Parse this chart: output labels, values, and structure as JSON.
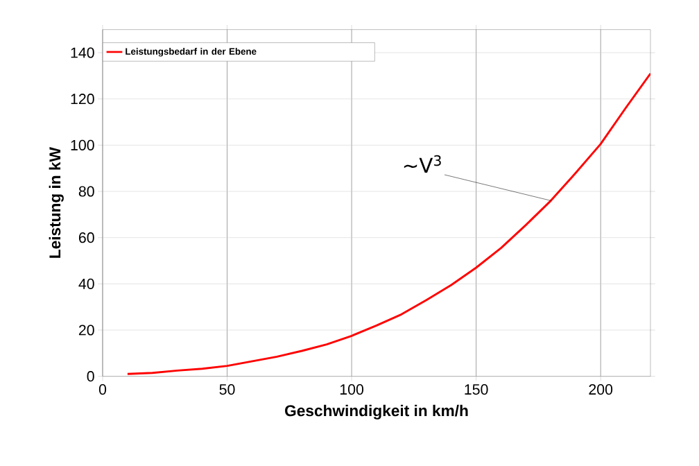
{
  "chart_data": {
    "type": "line",
    "xlabel": "Geschwindigkeit in km/h",
    "ylabel": "Leistung in kW",
    "x": [
      10,
      20,
      30,
      40,
      50,
      60,
      70,
      80,
      90,
      100,
      110,
      120,
      130,
      140,
      150,
      160,
      170,
      180,
      190,
      200,
      210,
      220
    ],
    "series": [
      {
        "name": "Leistungsbedarf in der Ebene",
        "color": "#ff0000",
        "values": [
          1,
          1.5,
          2.5,
          3.3,
          4.5,
          6.5,
          8.5,
          11,
          13.8,
          17.5,
          22,
          26.8,
          33,
          39.5,
          47,
          55.5,
          65.5,
          76,
          88,
          100.5,
          116,
          131
        ]
      }
    ],
    "xlim": [
      0,
      220
    ],
    "ylim": [
      0,
      150
    ],
    "xticks": [
      0,
      50,
      100,
      150,
      200
    ],
    "yticks": [
      0,
      20,
      40,
      60,
      80,
      100,
      120,
      140
    ],
    "grid": true,
    "legend": "top left",
    "marker": "none",
    "line_style": "solid",
    "annotations": [
      {
        "text": "∼V$^{3}$",
        "x": 180,
        "y": 76
      }
    ]
  }
}
